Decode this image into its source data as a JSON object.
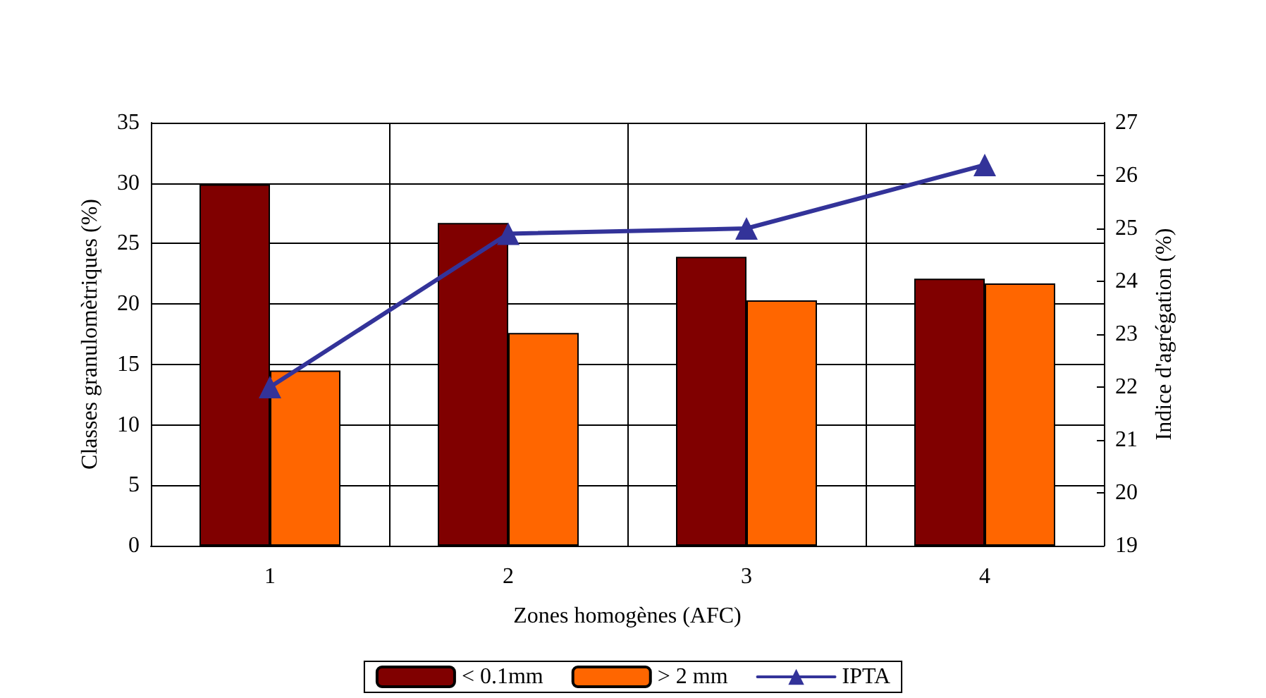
{
  "chart_data": {
    "type": "bar",
    "xlabel": "Zones homogènes (AFC)",
    "ylabel": "Classes granulomètriques (%)",
    "y2label": "Indice d'agrégation (%)",
    "categories": [
      "1",
      "2",
      "3",
      "4"
    ],
    "series": [
      {
        "name": "< 0.1mm",
        "color": "#800000",
        "values": [
          29.9,
          26.7,
          23.9,
          22.1
        ]
      },
      {
        "name": "> 2 mm",
        "color": "#ff6600",
        "values": [
          14.5,
          17.6,
          20.3,
          21.7
        ]
      },
      {
        "name": "IPTA",
        "type": "line",
        "axis": "y2",
        "color": "#333399",
        "marker": "triangle",
        "values": [
          22,
          24.9,
          25,
          26.2
        ]
      }
    ],
    "ylim": [
      0,
      35
    ],
    "yticks": [
      0,
      5,
      10,
      15,
      20,
      25,
      30,
      35
    ],
    "y2lim": [
      19,
      27
    ],
    "y2ticks": [
      19,
      20,
      21,
      22,
      23,
      24,
      25,
      26,
      27
    ],
    "grid": true,
    "legend": "bottom"
  }
}
